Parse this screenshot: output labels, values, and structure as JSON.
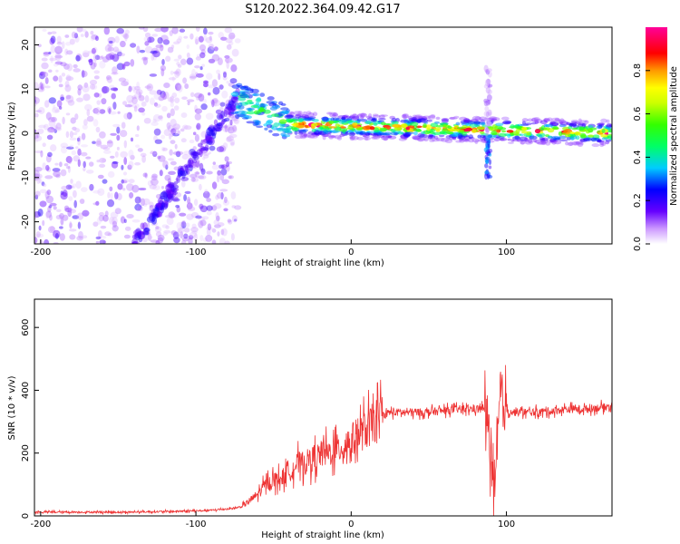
{
  "title": "S120.2022.364.09.42.G17",
  "chart_data": [
    {
      "type": "heatmap",
      "xlabel": "Height of straight line (km)",
      "ylabel": "Frequency (Hz)",
      "xlim": [
        -204,
        168
      ],
      "ylim": [
        -25,
        24
      ],
      "xticks": [
        -200,
        -100,
        0,
        100
      ],
      "yticks": [
        -20,
        -10,
        0,
        10,
        20
      ],
      "colorbar_label": "Normalized spectral amplitude",
      "colorbar_ticks": [
        0.0,
        0.2,
        0.4,
        0.6,
        0.8
      ],
      "colormap": [
        "#ffffff",
        "#9966ff",
        "#6600ff",
        "#0000ff",
        "#00ccff",
        "#00ff66",
        "#66ff00",
        "#ffff00",
        "#ff9900",
        "#ff0000",
        "#ff0066",
        "#ff0099"
      ],
      "grid": false,
      "features": [
        {
          "name": "noise",
          "x_range": [
            -204,
            -73
          ],
          "freq_range": [
            -25,
            24
          ],
          "amplitude": 0.15
        },
        {
          "name": "descending line",
          "x_range": [
            -140,
            -73
          ],
          "freq_start": -25,
          "freq_end": 8,
          "amplitude": 0.2
        },
        {
          "name": "main line",
          "x_range": [
            -75,
            168
          ],
          "freq_start": 8,
          "freq_end": 0,
          "amplitude": 0.9
        },
        {
          "name": "spike",
          "x": 88,
          "freq_range": [
            -10,
            15
          ],
          "amplitude": 0.3
        }
      ]
    },
    {
      "type": "line",
      "xlabel": "Height of straight line (km)",
      "ylabel": "SNR (10 * v/v)",
      "xlim": [
        -204,
        168
      ],
      "ylim": [
        0,
        690
      ],
      "xticks": [
        -200,
        -100,
        0,
        100
      ],
      "yticks": [
        0,
        200,
        400,
        600
      ],
      "color": "#ee3333",
      "grid": false,
      "x": [
        -204,
        -190,
        -175,
        -160,
        -145,
        -130,
        -115,
        -100,
        -90,
        -80,
        -75,
        -70,
        -65,
        -60,
        -55,
        -50,
        -45,
        -40,
        -35,
        -30,
        -25,
        -20,
        -15,
        -10,
        -5,
        0,
        5,
        10,
        15,
        20,
        25,
        30,
        40,
        50,
        60,
        70,
        80,
        85,
        88,
        90,
        92,
        94,
        96,
        98,
        100,
        105,
        110,
        120,
        130,
        140,
        150,
        160,
        168
      ],
      "y": [
        12,
        12,
        12,
        12,
        12,
        13,
        14,
        16,
        18,
        22,
        25,
        30,
        50,
        70,
        100,
        115,
        120,
        140,
        165,
        170,
        180,
        195,
        200,
        210,
        220,
        240,
        260,
        275,
        300,
        320,
        330,
        330,
        330,
        330,
        335,
        340,
        340,
        345,
        310,
        200,
        30,
        180,
        400,
        360,
        335,
        330,
        330,
        330,
        335,
        340,
        340,
        345,
        350
      ]
    }
  ]
}
